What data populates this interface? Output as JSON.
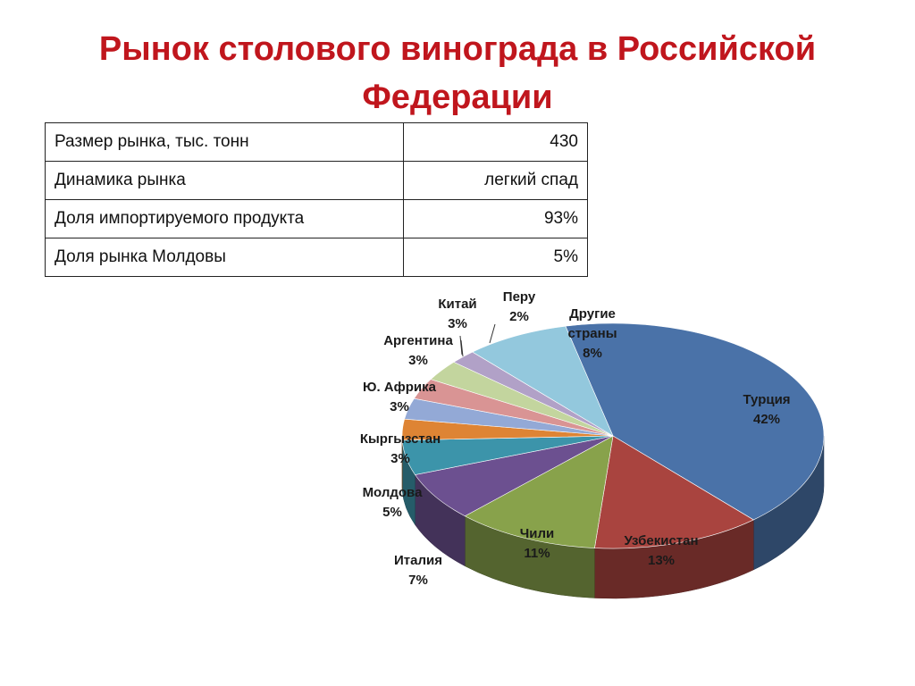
{
  "title": {
    "line1": "Рынок столового винограда в Российской",
    "line2": "Федерации"
  },
  "table": {
    "rows": [
      {
        "label": "Размер рынка, тыс. тонн",
        "value": "430"
      },
      {
        "label": "Динамика рынка",
        "value": "легкий спад"
      },
      {
        "label": "Доля импортируемого продукта",
        "value": "93%"
      },
      {
        "label": "Доля рынка Молдовы",
        "value": "5%"
      }
    ]
  },
  "chart_data": {
    "type": "pie",
    "style": "3d",
    "slices": [
      {
        "name": "Турция",
        "value": 42,
        "label": "42%",
        "color": "#4a72a8"
      },
      {
        "name": "Узбекистан",
        "value": 13,
        "label": "13%",
        "color": "#a9443f"
      },
      {
        "name": "Чили",
        "value": 11,
        "label": "11%",
        "color": "#88a24b"
      },
      {
        "name": "Италия",
        "value": 7,
        "label": "7%",
        "color": "#6c5090"
      },
      {
        "name": "Молдова",
        "value": 5,
        "label": "5%",
        "color": "#3c94aa"
      },
      {
        "name": "Кыргызстан",
        "value": 3,
        "label": "3%",
        "color": "#de8434"
      },
      {
        "name": "Ю. Африка",
        "value": 3,
        "label": "3%",
        "color": "#93a9d6"
      },
      {
        "name": "Аргентина",
        "value": 3,
        "label": "3%",
        "color": "#d99494"
      },
      {
        "name": "Китай",
        "value": 3,
        "label": "3%",
        "color": "#c3d59e"
      },
      {
        "name": "Перу",
        "value": 2,
        "label": "2%",
        "color": "#b1a1c7"
      },
      {
        "name": "Другие страны",
        "value": 8,
        "label": "8%",
        "color": "#93c8dd"
      }
    ]
  }
}
